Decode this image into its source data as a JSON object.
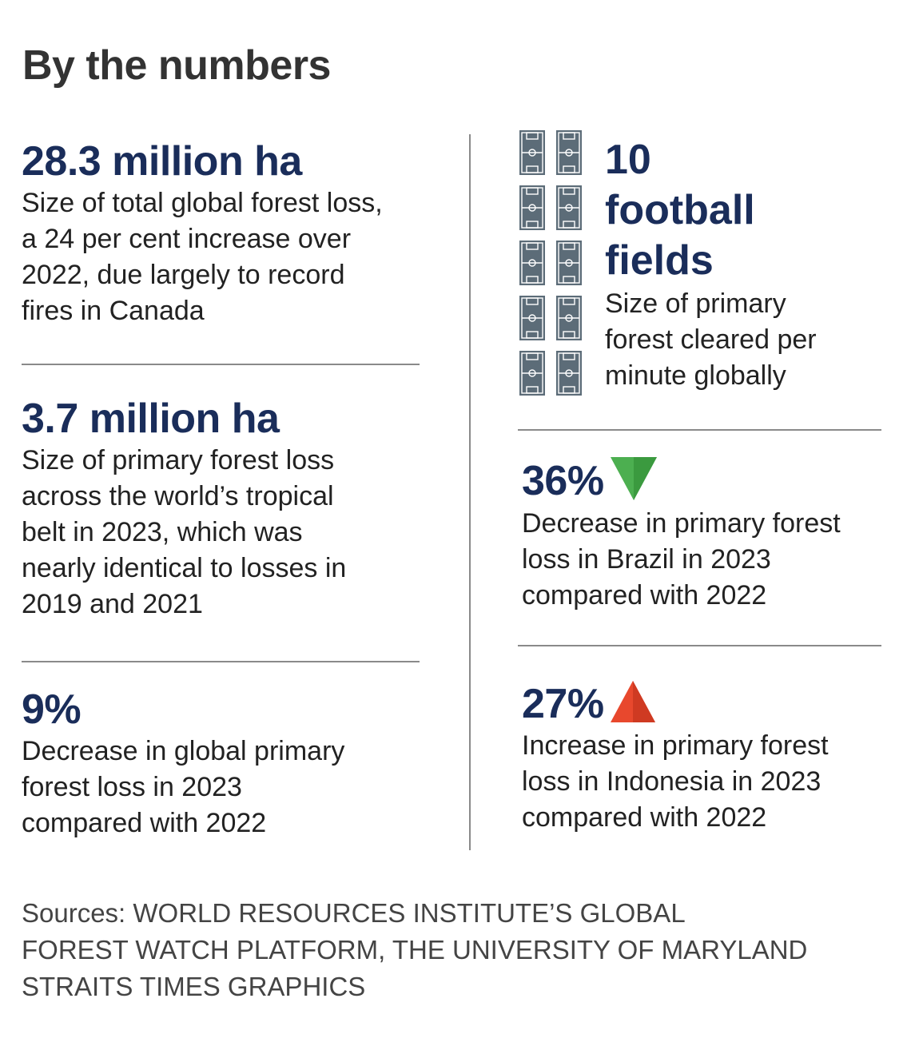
{
  "title": "By the numbers",
  "left": [
    {
      "value": "28.3 million ha",
      "lines": [
        "Size of total global forest loss,",
        "a 24 per cent increase over",
        "2022, due largely to record",
        "fires in Canada"
      ]
    },
    {
      "value": "3.7 million ha",
      "lines": [
        "Size of primary forest loss",
        "across the world’s tropical",
        "belt in 2023, which was",
        "nearly identical to losses in",
        "2019 and 2021"
      ]
    },
    {
      "value": "9%",
      "lines": [
        "Decrease in global primary",
        "forest loss in 2023",
        "compared with 2022"
      ]
    }
  ],
  "right": [
    {
      "value_lines": [
        "10",
        "football",
        "fields"
      ],
      "lines": [
        "Size of primary",
        "forest cleared per",
        "minute globally"
      ],
      "icon": "football-field-icon",
      "icon_count": 10
    },
    {
      "value": "36%",
      "lines": [
        "Decrease in primary forest",
        "loss in Brazil in 2023",
        "compared with 2022"
      ],
      "icon": "down-triangle-icon",
      "icon_color": "#4caf50"
    },
    {
      "value": "27%",
      "lines": [
        "Increase in primary forest",
        "loss in Indonesia in 2023",
        "compared with 2022"
      ],
      "icon": "up-triangle-icon",
      "icon_color": "#e8482d"
    }
  ],
  "sources": [
    "Sources: WORLD RESOURCES INSTITUTE’S GLOBAL",
    "FOREST WATCH PLATFORM, THE UNIVERSITY OF MARYLAND",
    "STRAITS TIMES GRAPHICS"
  ],
  "colors": {
    "accent": "#1a2d5a",
    "down": "#4caf50",
    "up": "#e8482d"
  }
}
